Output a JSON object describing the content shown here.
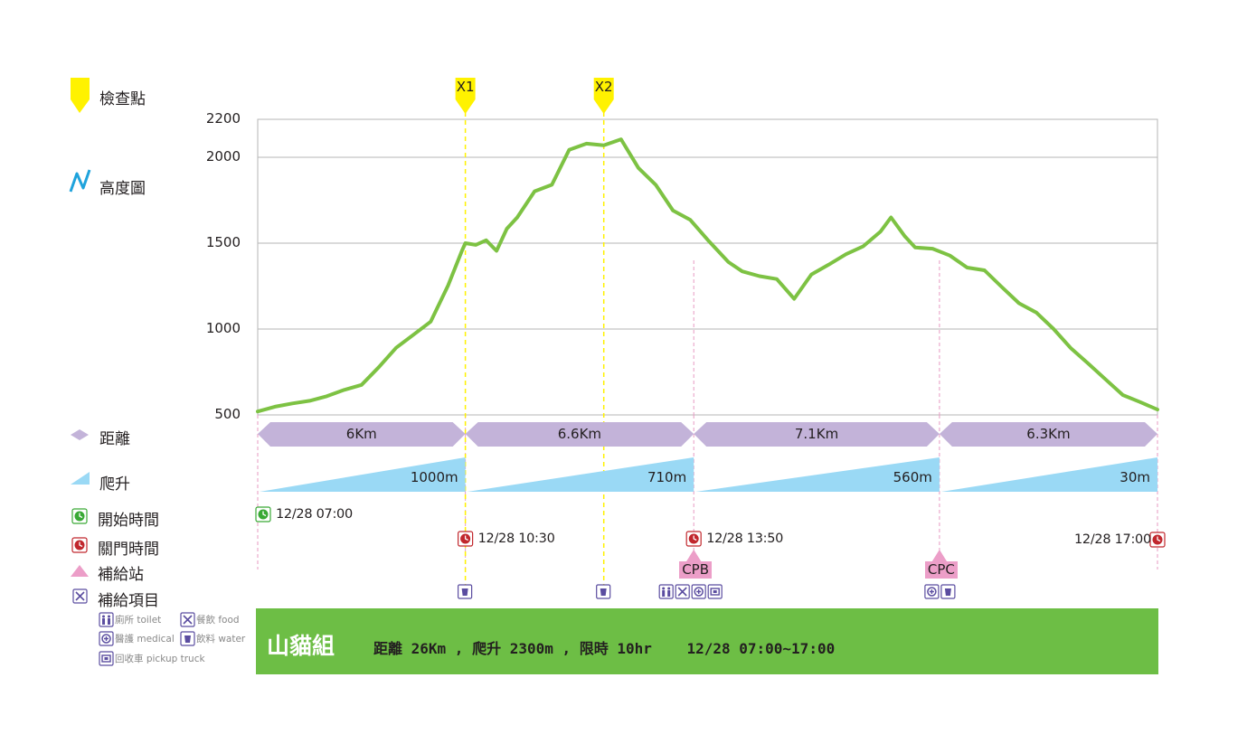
{
  "colors": {
    "profile": "#7dc243",
    "grid": "#b5b5b5",
    "checkpoint_marker": "#fff200",
    "distance_bar": "#c3b3d9",
    "climb_wedge": "#9ad9f5",
    "start_icon": "#39a935",
    "close_icon": "#c1272d",
    "supply_station": "#ec9ec8",
    "supply_item": "#5b4da0",
    "elevation_icon": "#1fa3dc",
    "banner": "#6dbe45"
  },
  "legend": {
    "checkpoint": "檢查點",
    "elevation": "高度圖",
    "distance": "距離",
    "climb": "爬升",
    "start_time": "開始時間",
    "close_time": "關門時間",
    "supply_station": "補給站",
    "supply_items": "補給項目",
    "toilet": "廁所 toilet",
    "food": "餐飲 food",
    "medical": "醫護 medical",
    "water": "飲料 water",
    "pickup_truck": "回收車 pickup truck"
  },
  "chart_data": {
    "type": "line",
    "title": "山貓組",
    "ylim": [
      500,
      2200
    ],
    "yticks": [
      "2200",
      "2000",
      "1500",
      "1000",
      "500"
    ],
    "ytick_values": [
      2200,
      2000,
      1500,
      1000,
      500
    ],
    "xlim": [
      0,
      26
    ],
    "series": [
      {
        "name": "高度圖",
        "x": [
          0,
          0.5,
          1,
          1.5,
          2,
          2.5,
          3,
          3.5,
          4,
          4.5,
          5,
          5.5,
          5.9,
          6,
          6.3,
          6.6,
          6.9,
          7.2,
          7.5,
          8,
          8.5,
          9,
          9.5,
          10,
          10.5,
          11,
          11.5,
          12,
          12.5,
          13,
          13.6,
          14,
          14.5,
          15,
          15.5,
          16,
          16.5,
          17,
          17.5,
          18,
          18.3,
          18.7,
          19,
          19.5,
          20,
          20.5,
          21,
          21.5,
          22,
          22.5,
          23,
          23.5,
          24,
          24.5,
          25,
          25.5,
          26
        ],
        "y": [
          520,
          548,
          567,
          582,
          609,
          646,
          675,
          778,
          891,
          967,
          1043,
          1253,
          1455,
          1500,
          1490,
          1517,
          1455,
          1584,
          1650,
          1802,
          1840,
          2039,
          2072,
          2063,
          2095,
          1938,
          1840,
          1690,
          1635,
          1520,
          1390,
          1336,
          1308,
          1291,
          1176,
          1318,
          1375,
          1436,
          1482,
          1568,
          1650,
          1540,
          1475,
          1468,
          1428,
          1358,
          1342,
          1245,
          1150,
          1096,
          1000,
          888,
          799,
          707,
          616,
          575,
          531
        ]
      }
    ],
    "checkpoints": [
      {
        "name": "X1",
        "km": 6
      },
      {
        "name": "X2",
        "km": 10
      }
    ],
    "segments": [
      {
        "distance": "6Km",
        "climb": "1000m",
        "start_km": 0,
        "end_km": 6
      },
      {
        "distance": "6.6Km",
        "climb": "710m",
        "start_km": 6,
        "end_km": 12.6
      },
      {
        "distance": "7.1Km",
        "climb": "560m",
        "start_km": 12.6,
        "end_km": 19.7
      },
      {
        "distance": "6.3Km",
        "climb": "30m",
        "start_km": 19.7,
        "end_km": 26
      }
    ],
    "times": [
      {
        "kind": "start",
        "label": "12/28 07:00",
        "km": 0
      },
      {
        "kind": "close",
        "label": "12/28 10:30",
        "km": 6
      },
      {
        "kind": "close",
        "label": "12/28 13:50",
        "km": 12.6
      },
      {
        "kind": "close",
        "label": "12/28 17:00",
        "km": 26
      }
    ],
    "stations": [
      {
        "name": "CPB",
        "km": 12.6
      },
      {
        "name": "CPC",
        "km": 19.7
      }
    ],
    "supply_items": [
      {
        "km": 6,
        "items": [
          "water"
        ]
      },
      {
        "km": 10,
        "items": [
          "water"
        ]
      },
      {
        "km": 12.6,
        "items": [
          "toilet",
          "food",
          "medical",
          "pickup_truck"
        ]
      },
      {
        "km": 19.7,
        "items": [
          "medical",
          "water"
        ]
      }
    ]
  },
  "banner": {
    "team": "山貓組",
    "info": "距離 26Km , 爬升 2300m , 限時 10hr    12/28 07:00~17:00"
  }
}
